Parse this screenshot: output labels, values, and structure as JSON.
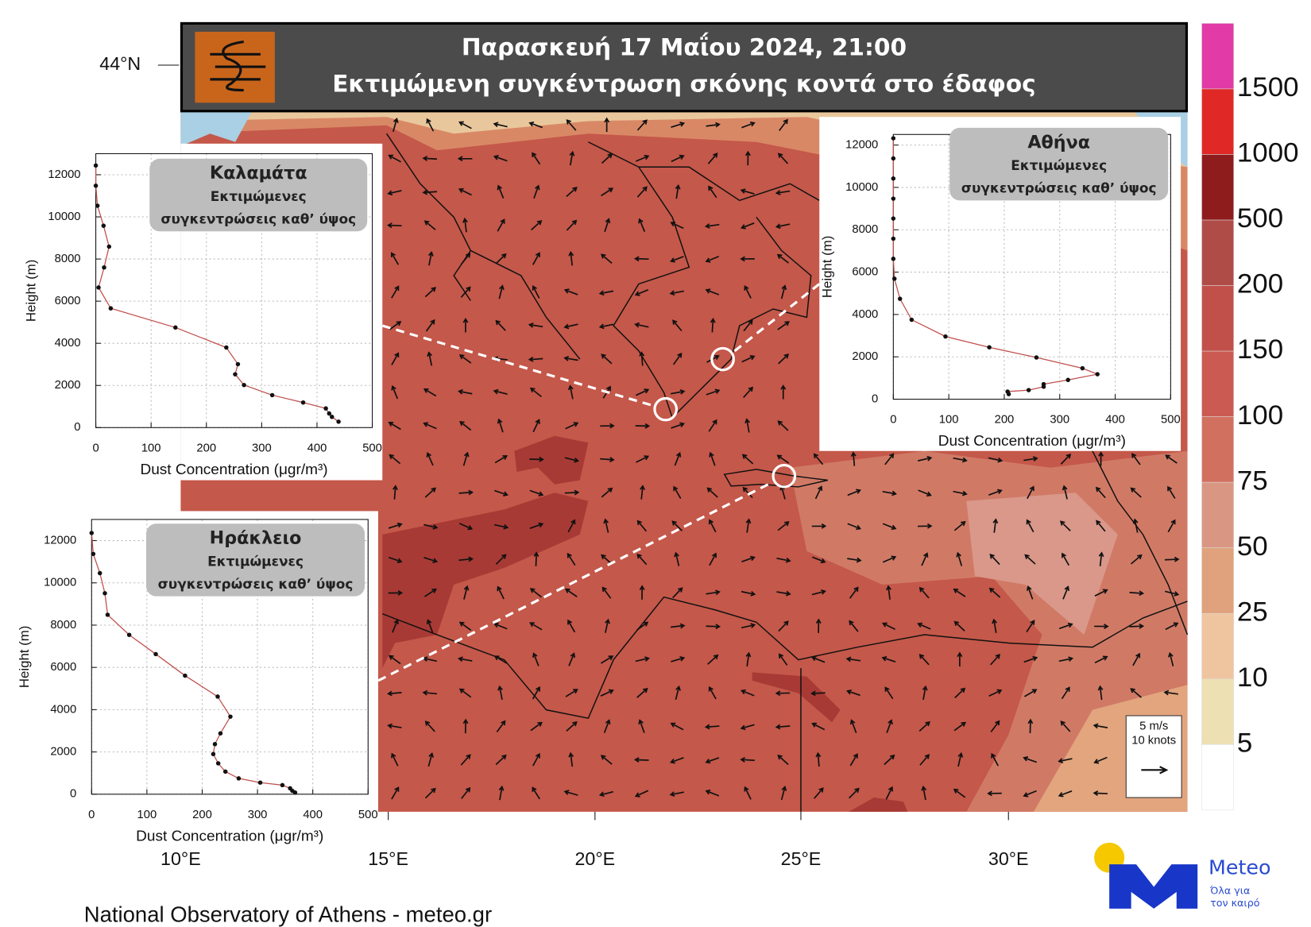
{
  "header": {
    "title": "Παρασκευή  17 Μαΐου 2024, 21:00",
    "subtitle": "Εκτιμώμενη συγκέντρωση σκόνης κοντά στο έδαφος"
  },
  "map": {
    "lat_labels": [
      "44°N"
    ],
    "lon_labels": [
      "10°E",
      "15°E",
      "20°E",
      "25°E",
      "30°E"
    ],
    "wind_legend": [
      "5 m/s",
      "10 knots"
    ]
  },
  "colorbar": {
    "ticks": [
      1500,
      1000,
      500,
      200,
      150,
      100,
      75,
      50,
      25,
      10,
      5
    ],
    "colors": [
      "#e23aa6",
      "#e02826",
      "#8e1c1c",
      "#b04c47",
      "#c2504a",
      "#cb5b52",
      "#d2705f",
      "#d99783",
      "#e0a27c",
      "#efc5a0",
      "#ede0b3",
      "#ffffff"
    ]
  },
  "chart_data": [
    {
      "type": "line",
      "title": "Καλαμάτα",
      "subtitle": [
        "Εκτιμώμενες",
        "συγκεντρώσεις καθ’ ύψος"
      ],
      "x_label": "Dust Concentration (μgr/m³)",
      "y_label": "Height (m)",
      "x": [
        0,
        0,
        3,
        14,
        24,
        15,
        5,
        27,
        144,
        236,
        257,
        252,
        268,
        319,
        375,
        416,
        422,
        427,
        439
      ],
      "series": [
        {
          "color": "#c0504d",
          "values": [
            12440,
            11480,
            10530,
            9580,
            8590,
            7600,
            6650,
            5660,
            4750,
            3800,
            3010,
            2530,
            2020,
            1540,
            1190,
            910,
            670,
            510,
            280
          ]
        }
      ],
      "xlim": [
        0,
        500
      ],
      "ylim": [
        0,
        13000
      ],
      "xticks": [
        0,
        100,
        200,
        300,
        400,
        500
      ],
      "yticks": [
        0,
        2000,
        4000,
        6000,
        8000,
        10000,
        12000
      ]
    },
    {
      "type": "line",
      "title": "Αθήνα",
      "subtitle": [
        "Εκτιμώμενες",
        "συγκεντρώσεις καθ’ ύψος"
      ],
      "x_label": "Dust Concentration (μgr/m³)",
      "y_label": "Height (m)",
      "x": [
        0,
        0,
        0,
        0,
        0,
        0,
        0,
        2,
        12,
        33,
        94,
        173,
        258,
        341,
        368,
        315,
        271,
        271,
        244,
        206,
        208
      ],
      "series": [
        {
          "color": "#c0504d",
          "values": [
            12320,
            11370,
            10420,
            9470,
            8530,
            7580,
            6630,
            5690,
            4740,
            3750,
            2960,
            2450,
            1970,
            1460,
            1180,
            910,
            710,
            590,
            430,
            360,
            240
          ]
        }
      ],
      "xlim": [
        0,
        500
      ],
      "ylim": [
        0,
        12500
      ],
      "xticks": [
        0,
        100,
        200,
        300,
        400,
        500
      ],
      "yticks": [
        0,
        2000,
        4000,
        6000,
        8000,
        10000,
        12000
      ]
    },
    {
      "type": "line",
      "title": "Ηράκλειο",
      "subtitle": [
        "Εκτιμώμενες",
        "συγκεντρώσεις καθ’ ύψος"
      ],
      "x_label": "Dust Concentration (μgr/m³)",
      "y_label": "Height (m)",
      "x": [
        0,
        3,
        15,
        24,
        29,
        68,
        116,
        169,
        228,
        251,
        233,
        223,
        220,
        229,
        242,
        266,
        305,
        345,
        359,
        363,
        368
      ],
      "series": [
        {
          "color": "#c0504d",
          "values": [
            12360,
            11370,
            10460,
            9510,
            8490,
            7540,
            6630,
            5610,
            4620,
            3670,
            2880,
            2370,
            1900,
            1460,
            1070,
            750,
            550,
            430,
            280,
            160,
            80
          ]
        }
      ],
      "xlim": [
        0,
        500
      ],
      "ylim": [
        0,
        13000
      ],
      "xticks": [
        0,
        100,
        200,
        300,
        400,
        500
      ],
      "yticks": [
        0,
        2000,
        4000,
        6000,
        8000,
        10000,
        12000
      ]
    }
  ],
  "footer": "National Observatory of Athens - meteo.gr",
  "logo": {
    "name": "Meteo",
    "tagline": [
      "Όλα για",
      "τον καιρό"
    ]
  }
}
